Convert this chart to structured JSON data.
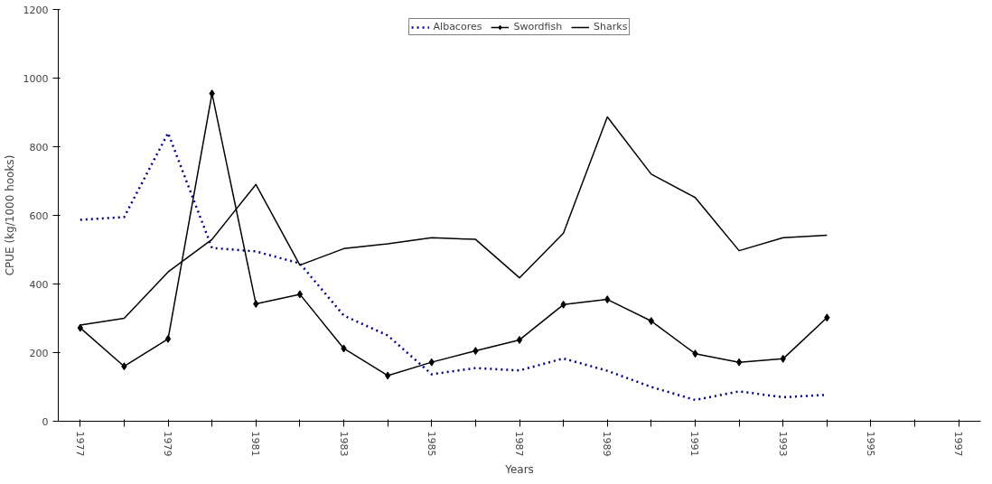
{
  "chart_data": {
    "type": "line",
    "xlabel": "Years",
    "ylabel": "CPUE (kg/1000 hooks)",
    "categories": [
      "1977",
      null,
      "1979",
      null,
      "1981",
      null,
      "1983",
      null,
      "1985",
      null,
      "1987",
      null,
      "1989",
      null,
      "1991",
      null,
      "1993",
      null,
      "1995",
      null,
      "1997"
    ],
    "ylim": [
      0,
      1200
    ],
    "yticks": [
      0,
      200,
      400,
      600,
      800,
      1000,
      1200
    ],
    "grid": false,
    "legend": "top",
    "series": [
      {
        "name": "Albacores",
        "color": "#00008b",
        "line_style": "dotted",
        "marker": "none",
        "values": [
          587,
          595,
          840,
          505,
          495,
          460,
          308,
          250,
          137,
          155,
          148,
          183,
          147,
          100,
          62,
          87,
          70,
          77,
          null,
          null,
          null
        ]
      },
      {
        "name": "Swordfish",
        "color": "#000000",
        "line_style": "solid",
        "marker": "diamond",
        "values": [
          272,
          160,
          240,
          955,
          342,
          370,
          212,
          133,
          172,
          205,
          237,
          340,
          355,
          292,
          197,
          172,
          182,
          302,
          null,
          null,
          null
        ]
      },
      {
        "name": "Sharks",
        "color": "#000000",
        "line_style": "solid",
        "marker": "none",
        "values": [
          280,
          300,
          435,
          530,
          690,
          455,
          503,
          517,
          535,
          530,
          418,
          548,
          887,
          720,
          652,
          497,
          535,
          542,
          null,
          null,
          null
        ]
      }
    ]
  }
}
